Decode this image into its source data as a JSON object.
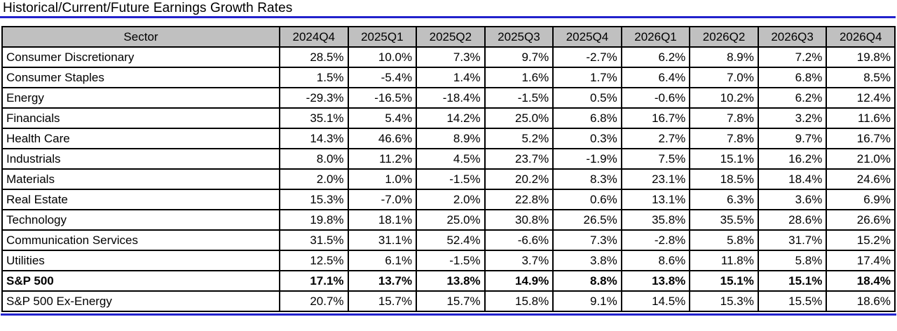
{
  "page": {
    "title": "Historical/Current/Future Earnings Growth Rates"
  },
  "colors": {
    "accent_blue": "#2222cc",
    "header_bg": "#c0c0c0",
    "border": "#000000"
  },
  "chart_data": {
    "type": "table",
    "title": "Historical/Current/Future Earnings Growth Rates",
    "columns": [
      "Sector",
      "2024Q4",
      "2025Q1",
      "2025Q2",
      "2025Q3",
      "2025Q4",
      "2026Q1",
      "2026Q2",
      "2026Q3",
      "2026Q4"
    ],
    "rows": [
      {
        "sector": "Consumer Discretionary",
        "bold": false,
        "values": [
          "28.5%",
          "10.0%",
          "7.3%",
          "9.7%",
          "-2.7%",
          "6.2%",
          "8.9%",
          "7.2%",
          "19.8%"
        ]
      },
      {
        "sector": "Consumer Staples",
        "bold": false,
        "values": [
          "1.5%",
          "-5.4%",
          "1.4%",
          "1.6%",
          "1.7%",
          "6.4%",
          "7.0%",
          "6.8%",
          "8.5%"
        ]
      },
      {
        "sector": "Energy",
        "bold": false,
        "values": [
          "-29.3%",
          "-16.5%",
          "-18.4%",
          "-1.5%",
          "0.5%",
          "-0.6%",
          "10.2%",
          "6.2%",
          "12.4%"
        ]
      },
      {
        "sector": "Financials",
        "bold": false,
        "values": [
          "35.1%",
          "5.4%",
          "14.2%",
          "25.0%",
          "6.8%",
          "16.7%",
          "7.8%",
          "3.2%",
          "11.6%"
        ]
      },
      {
        "sector": "Health Care",
        "bold": false,
        "values": [
          "14.3%",
          "46.6%",
          "8.9%",
          "5.2%",
          "0.3%",
          "2.7%",
          "7.8%",
          "9.7%",
          "16.7%"
        ]
      },
      {
        "sector": "Industrials",
        "bold": false,
        "values": [
          "8.0%",
          "11.2%",
          "4.5%",
          "23.7%",
          "-1.9%",
          "7.5%",
          "15.1%",
          "16.2%",
          "21.0%"
        ]
      },
      {
        "sector": "Materials",
        "bold": false,
        "values": [
          "2.0%",
          "1.0%",
          "-1.5%",
          "20.2%",
          "8.3%",
          "23.1%",
          "18.5%",
          "18.4%",
          "24.6%"
        ]
      },
      {
        "sector": "Real Estate",
        "bold": false,
        "values": [
          "15.3%",
          "-7.0%",
          "2.0%",
          "22.8%",
          "0.6%",
          "13.1%",
          "6.3%",
          "3.6%",
          "6.9%"
        ]
      },
      {
        "sector": "Technology",
        "bold": false,
        "values": [
          "19.8%",
          "18.1%",
          "25.0%",
          "30.8%",
          "26.5%",
          "35.8%",
          "35.5%",
          "28.6%",
          "26.6%"
        ]
      },
      {
        "sector": "Communication Services",
        "bold": false,
        "values": [
          "31.5%",
          "31.1%",
          "52.4%",
          "-6.6%",
          "7.3%",
          "-2.8%",
          "5.8%",
          "31.7%",
          "15.2%"
        ]
      },
      {
        "sector": "Utilities",
        "bold": false,
        "values": [
          "12.5%",
          "6.1%",
          "-1.5%",
          "3.7%",
          "3.8%",
          "8.6%",
          "11.8%",
          "5.8%",
          "17.4%"
        ]
      },
      {
        "sector": "S&P 500",
        "bold": true,
        "values": [
          "17.1%",
          "13.7%",
          "13.8%",
          "14.9%",
          "8.8%",
          "13.8%",
          "15.1%",
          "15.1%",
          "18.4%"
        ]
      },
      {
        "sector": "S&P 500 Ex-Energy",
        "bold": false,
        "values": [
          "20.7%",
          "15.7%",
          "15.7%",
          "15.8%",
          "9.1%",
          "14.5%",
          "15.3%",
          "15.5%",
          "18.6%"
        ]
      }
    ]
  }
}
